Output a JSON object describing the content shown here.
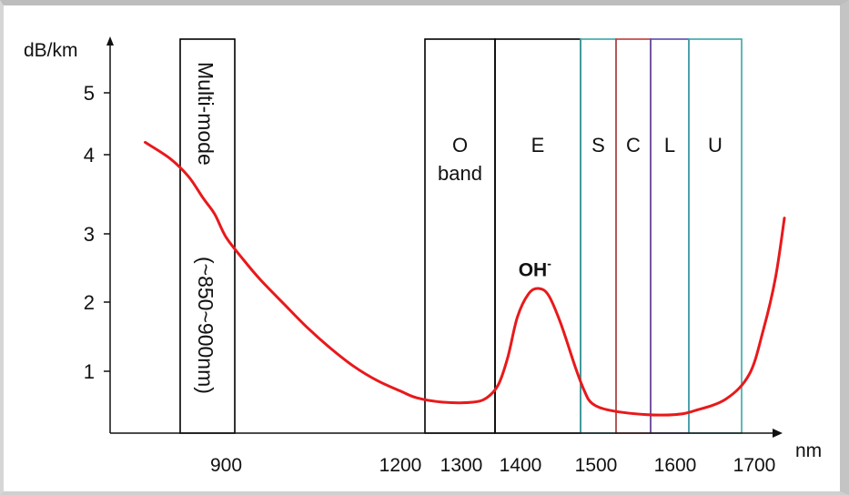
{
  "chart_data": {
    "type": "line",
    "title": "",
    "ylabel": "dB/km",
    "xlabel": "nm",
    "y_ticks": [
      1,
      2,
      3,
      4,
      5
    ],
    "x_tick_labels": [
      "900",
      "1200",
      "1300",
      "1400",
      "1500",
      "1600",
      "1700"
    ],
    "x_tick_values": [
      900,
      1200,
      1300,
      1400,
      1500,
      1600,
      1700
    ],
    "grid": false,
    "series": [
      {
        "color": "#e8191b",
        "points": [
          {
            "x": 785,
            "y": 4.2
          },
          {
            "x": 810,
            "y": 3.95
          },
          {
            "x": 835,
            "y": 3.72
          },
          {
            "x": 860,
            "y": 3.45
          },
          {
            "x": 880,
            "y": 3.25
          },
          {
            "x": 900,
            "y": 2.95
          },
          {
            "x": 930,
            "y": 2.62
          },
          {
            "x": 960,
            "y": 2.32
          },
          {
            "x": 1000,
            "y": 1.97
          },
          {
            "x": 1040,
            "y": 1.63
          },
          {
            "x": 1080,
            "y": 1.33
          },
          {
            "x": 1120,
            "y": 1.07
          },
          {
            "x": 1160,
            "y": 0.85
          },
          {
            "x": 1200,
            "y": 0.68
          },
          {
            "x": 1240,
            "y": 0.57
          },
          {
            "x": 1280,
            "y": 0.5
          },
          {
            "x": 1320,
            "y": 0.5
          },
          {
            "x": 1345,
            "y": 0.57
          },
          {
            "x": 1365,
            "y": 0.78
          },
          {
            "x": 1380,
            "y": 1.2
          },
          {
            "x": 1395,
            "y": 1.78
          },
          {
            "x": 1408,
            "y": 2.12
          },
          {
            "x": 1418,
            "y": 2.2
          },
          {
            "x": 1428,
            "y": 2.1
          },
          {
            "x": 1440,
            "y": 1.7
          },
          {
            "x": 1455,
            "y": 1.05
          },
          {
            "x": 1470,
            "y": 0.68
          },
          {
            "x": 1490,
            "y": 0.48
          },
          {
            "x": 1520,
            "y": 0.37
          },
          {
            "x": 1560,
            "y": 0.3
          },
          {
            "x": 1600,
            "y": 0.3
          },
          {
            "x": 1630,
            "y": 0.36
          },
          {
            "x": 1660,
            "y": 0.55
          },
          {
            "x": 1690,
            "y": 0.95
          },
          {
            "x": 1715,
            "y": 1.6
          },
          {
            "x": 1735,
            "y": 2.35
          },
          {
            "x": 1750,
            "y": 3.2
          }
        ]
      }
    ],
    "bands": [
      {
        "label": "Multi-mode",
        "sublabel": "(~850~900nm)",
        "x_start": 820,
        "x_end": 915,
        "color": "#000000",
        "rotated": true
      },
      {
        "label": "O",
        "sublabel": "band",
        "x_start": 1260,
        "x_end": 1360,
        "color": "#000000"
      },
      {
        "label": "E",
        "x_start": 1360,
        "x_end": 1460,
        "color": "#000000"
      },
      {
        "label": "S",
        "x_start": 1460,
        "x_end": 1530,
        "color": "#3aa6a6"
      },
      {
        "label": "C",
        "x_start": 1530,
        "x_end": 1565,
        "color": "#c03a3a"
      },
      {
        "label": "L",
        "x_start": 1565,
        "x_end": 1625,
        "color": "#5a4aa8"
      },
      {
        "label": "U",
        "x_start": 1625,
        "x_end": 1675,
        "color": "#3aa6a6"
      }
    ],
    "annotations": [
      {
        "text": "OH",
        "superscript": "-",
        "x": 1418,
        "y": 2.3
      }
    ]
  }
}
